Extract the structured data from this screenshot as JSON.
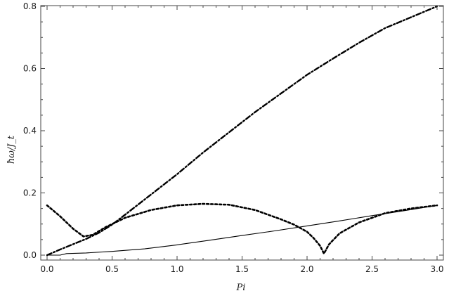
{
  "chart_data": {
    "type": "line",
    "title": "",
    "xlabel": "Pi",
    "ylabel": "ħω/J_t",
    "xlim": [
      0,
      3.0
    ],
    "ylim": [
      -0.01,
      0.82
    ],
    "xticks": [
      "0.0",
      "0.5",
      "1.0",
      "1.5",
      "2.0",
      "2.5",
      "3.0"
    ],
    "yticks": [
      "0.0",
      "0.2",
      "0.4",
      "0.6",
      "0.8"
    ],
    "grid": false,
    "series": [
      {
        "style": "dash-dot",
        "x": [
          0.0,
          0.1,
          0.2,
          0.3,
          0.4,
          0.5,
          0.6,
          0.8,
          1.0,
          1.2,
          1.4,
          1.6,
          1.8,
          2.0,
          2.2,
          2.4,
          2.6,
          2.8,
          3.0
        ],
        "y": [
          0.0,
          0.018,
          0.035,
          0.052,
          0.072,
          0.098,
          0.13,
          0.195,
          0.26,
          0.33,
          0.395,
          0.46,
          0.52,
          0.58,
          0.632,
          0.683,
          0.73,
          0.765,
          0.8
        ]
      },
      {
        "style": "dashed",
        "x": [
          0.0,
          0.1,
          0.2,
          0.28,
          0.35,
          0.45,
          0.6,
          0.8,
          1.0,
          1.2,
          1.4,
          1.6,
          1.8,
          1.9,
          2.0,
          2.05,
          2.1,
          2.13,
          2.17,
          2.25,
          2.4,
          2.6,
          2.8,
          3.0
        ],
        "y": [
          0.16,
          0.125,
          0.085,
          0.06,
          0.065,
          0.09,
          0.12,
          0.145,
          0.16,
          0.165,
          0.162,
          0.145,
          0.115,
          0.098,
          0.075,
          0.055,
          0.03,
          0.005,
          0.035,
          0.07,
          0.105,
          0.135,
          0.15,
          0.16
        ]
      },
      {
        "style": "solid",
        "x": [
          0.0,
          0.1,
          0.15,
          0.3,
          0.5,
          0.75,
          1.0,
          1.25,
          1.5,
          1.75,
          2.0,
          2.25,
          2.5,
          2.75,
          3.0
        ],
        "y": [
          0.0,
          0.0,
          0.005,
          0.007,
          0.012,
          0.02,
          0.033,
          0.048,
          0.063,
          0.078,
          0.094,
          0.11,
          0.127,
          0.143,
          0.16
        ]
      }
    ]
  }
}
